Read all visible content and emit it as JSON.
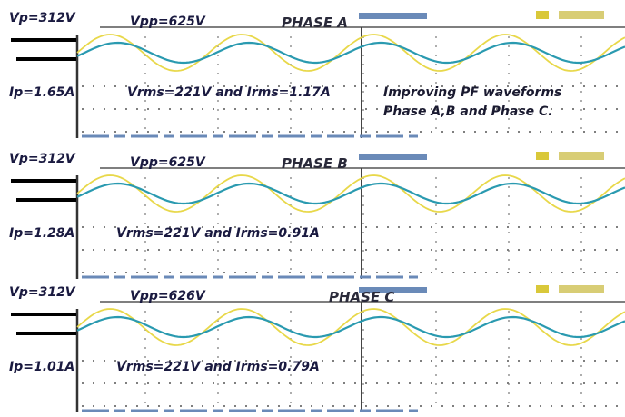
{
  "panels": [
    {
      "vp": "Vp=312V",
      "vpp": "Vpp=625V",
      "title": "PHASE A",
      "ip": "Ip=1.65A",
      "rms": "Vrms=221V and Irms=1.17A",
      "note": [
        "Improving PF waveforms",
        "Phase A,B and Phase C."
      ]
    },
    {
      "vp": "Vp=312V",
      "vpp": "Vpp=625V",
      "title": "PHASE B",
      "ip": "Ip=1.28A",
      "rms": "Vrms=221V and Irms=0.91A"
    },
    {
      "vp": "Vp=312V",
      "vpp": "Vpp=626V",
      "title": "PHASE C",
      "ip": "Ip=1.01A",
      "rms": "Vrms=221V and Irms=0.79A"
    }
  ]
}
